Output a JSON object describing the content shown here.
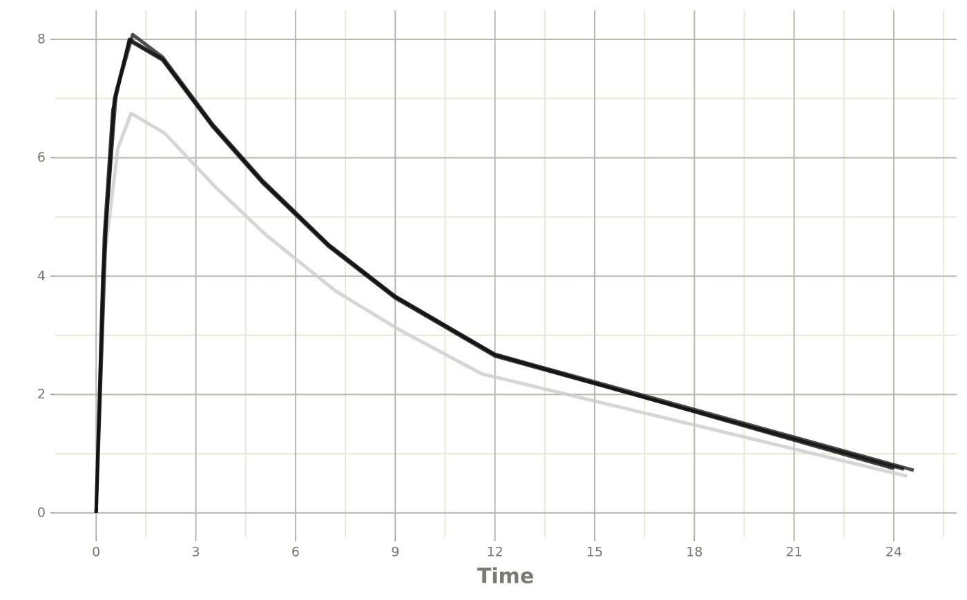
{
  "chart_data": {
    "type": "line",
    "x_label": "Time",
    "xlim": [
      -1.23,
      25.89
    ],
    "ylim": [
      -0.41,
      8.49
    ],
    "xticks": [
      0,
      3,
      6,
      9,
      12,
      15,
      18,
      21,
      24
    ],
    "yticks": [
      0,
      2,
      4,
      6,
      8
    ],
    "minor_xticks": [
      1.5,
      4.5,
      7.5,
      10.5,
      13.5,
      16.5,
      19.5,
      22.5,
      25.5
    ],
    "minor_yticks": [
      1,
      3,
      5,
      7
    ],
    "grid": true,
    "series": [
      {
        "color": "#cccccc",
        "x": [
          0,
          0.25,
          0.65,
          1.05,
          2.05,
          3.6,
          5.1,
          7.2,
          9.1,
          11.6,
          24.4
        ],
        "values": [
          0,
          4.3,
          6.15,
          6.75,
          6.42,
          5.5,
          4.7,
          3.75,
          3.1,
          2.35,
          0.62
        ]
      },
      {
        "color": "#222222",
        "x": [
          0,
          0.3,
          0.6,
          1.1,
          2.0,
          3.5,
          5.0,
          7.0,
          9.0,
          12.0,
          24.6
        ],
        "values": [
          0,
          4.9,
          7.1,
          8.08,
          7.7,
          6.57,
          5.62,
          4.53,
          3.66,
          2.68,
          0.72
        ]
      },
      {
        "color": "#111111",
        "x": [
          0,
          0.25,
          0.5,
          1.0,
          2.0,
          3.5,
          5.0,
          7.0,
          9.0,
          12.0,
          24.0
        ],
        "values": [
          0,
          4.7,
          6.8,
          8.0,
          7.67,
          6.55,
          5.6,
          4.52,
          3.65,
          2.67,
          0.75
        ]
      },
      {
        "color": "#111111",
        "x": [
          0,
          0.2,
          0.55,
          1.0,
          2.0,
          3.5,
          5.0,
          7.0,
          9.0,
          12.0,
          24.3
        ],
        "values": [
          0,
          4.0,
          7.0,
          7.98,
          7.65,
          6.53,
          5.58,
          4.5,
          3.63,
          2.65,
          0.74
        ]
      }
    ]
  }
}
